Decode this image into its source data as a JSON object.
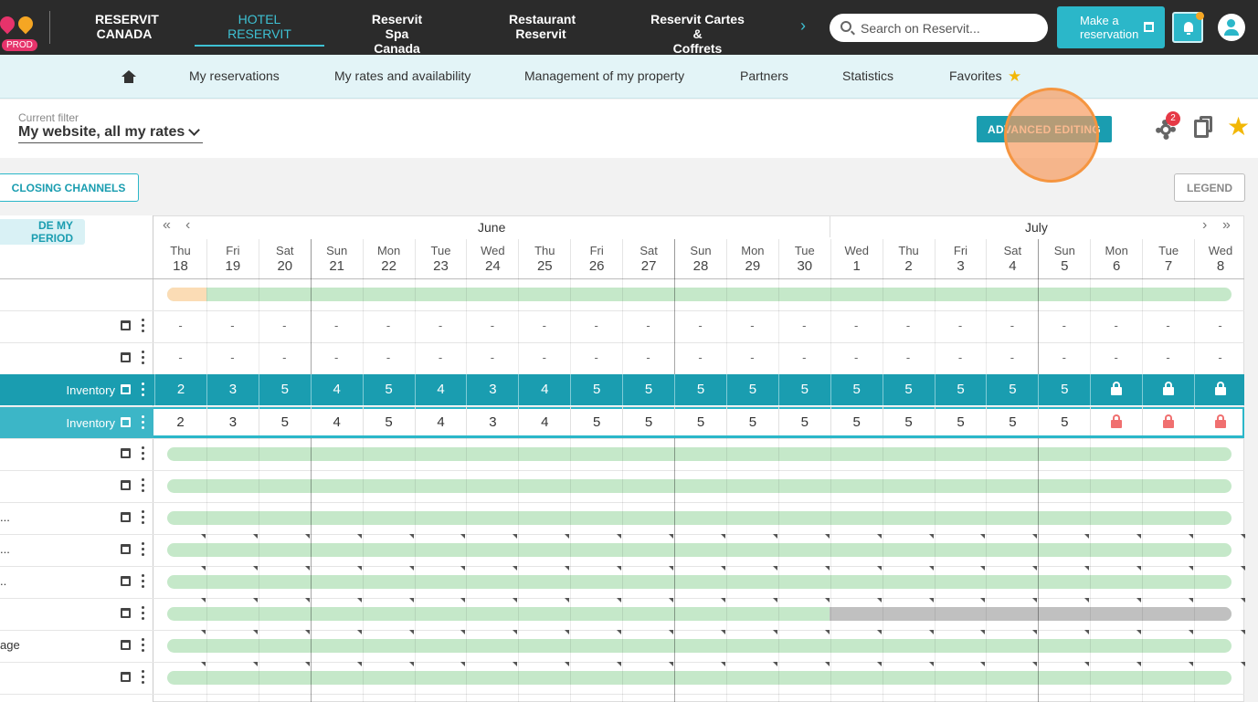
{
  "app": {
    "env_badge": "PROD",
    "nav_tabs": [
      {
        "line1": "RESERVIT",
        "line2": "CANADA",
        "active": false
      },
      {
        "line1": "HOTEL",
        "line2": "RESERVIT",
        "active": true
      },
      {
        "line1": "Reservit Spa",
        "line2": "Canada",
        "active": false
      },
      {
        "line1": "Restaurant",
        "line2": "Reservit",
        "active": false
      },
      {
        "line1": "Reservit Cartes &",
        "line2": "Coffrets",
        "active": false
      }
    ],
    "search_placeholder": "Search on Reservit...",
    "make_reservation_line1": "Make a",
    "make_reservation_line2": "reservation"
  },
  "subnav": {
    "items": [
      "My reservations",
      "My rates and availability",
      "Management of my property",
      "Partners",
      "Statistics",
      "Favorites"
    ]
  },
  "filter": {
    "caption": "Current filter",
    "value": "My website, all my rates",
    "advanced_editing": "ADVANCED EDITING",
    "settings_badge": "2"
  },
  "toolbar": {
    "closing_channels": "CLOSING CHANNELS",
    "legend": "LEGEND",
    "period_button": "DE MY PERIOD"
  },
  "calendar": {
    "months": [
      {
        "name": "June"
      },
      {
        "name": "July"
      }
    ],
    "days": [
      {
        "dow": "Thu",
        "num": "18"
      },
      {
        "dow": "Fri",
        "num": "19"
      },
      {
        "dow": "Sat",
        "num": "20"
      },
      {
        "dow": "Sun",
        "num": "21"
      },
      {
        "dow": "Mon",
        "num": "22"
      },
      {
        "dow": "Tue",
        "num": "23"
      },
      {
        "dow": "Wed",
        "num": "24"
      },
      {
        "dow": "Thu",
        "num": "25"
      },
      {
        "dow": "Fri",
        "num": "26"
      },
      {
        "dow": "Sat",
        "num": "27"
      },
      {
        "dow": "Sun",
        "num": "28"
      },
      {
        "dow": "Mon",
        "num": "29"
      },
      {
        "dow": "Tue",
        "num": "30"
      },
      {
        "dow": "Wed",
        "num": "1"
      },
      {
        "dow": "Thu",
        "num": "2"
      },
      {
        "dow": "Fri",
        "num": "3"
      },
      {
        "dow": "Sat",
        "num": "4"
      },
      {
        "dow": "Sun",
        "num": "5"
      },
      {
        "dow": "Mon",
        "num": "6"
      },
      {
        "dow": "Tue",
        "num": "7"
      },
      {
        "dow": "Wed",
        "num": "8"
      }
    ],
    "dash": "-",
    "inventory_label": "Inventory",
    "inventory_main": [
      "2",
      "3",
      "5",
      "4",
      "5",
      "4",
      "3",
      "4",
      "5",
      "5",
      "5",
      "5",
      "5",
      "5",
      "5",
      "5",
      "5",
      "5",
      "lock",
      "lock",
      "lock"
    ],
    "inventory_sub": [
      "2",
      "3",
      "5",
      "4",
      "5",
      "4",
      "3",
      "4",
      "5",
      "5",
      "5",
      "5",
      "5",
      "5",
      "5",
      "5",
      "5",
      "5",
      "lock",
      "lock",
      "lock"
    ],
    "rate_row_labels": [
      "",
      "",
      "...",
      "...",
      "..",
      "",
      "age",
      ""
    ]
  },
  "colors": {
    "teal": "#1a9db0",
    "availability_green": "#c5e8c9",
    "closed_grey": "#c0c0c0",
    "highlight_orange": "#f79b5f"
  }
}
